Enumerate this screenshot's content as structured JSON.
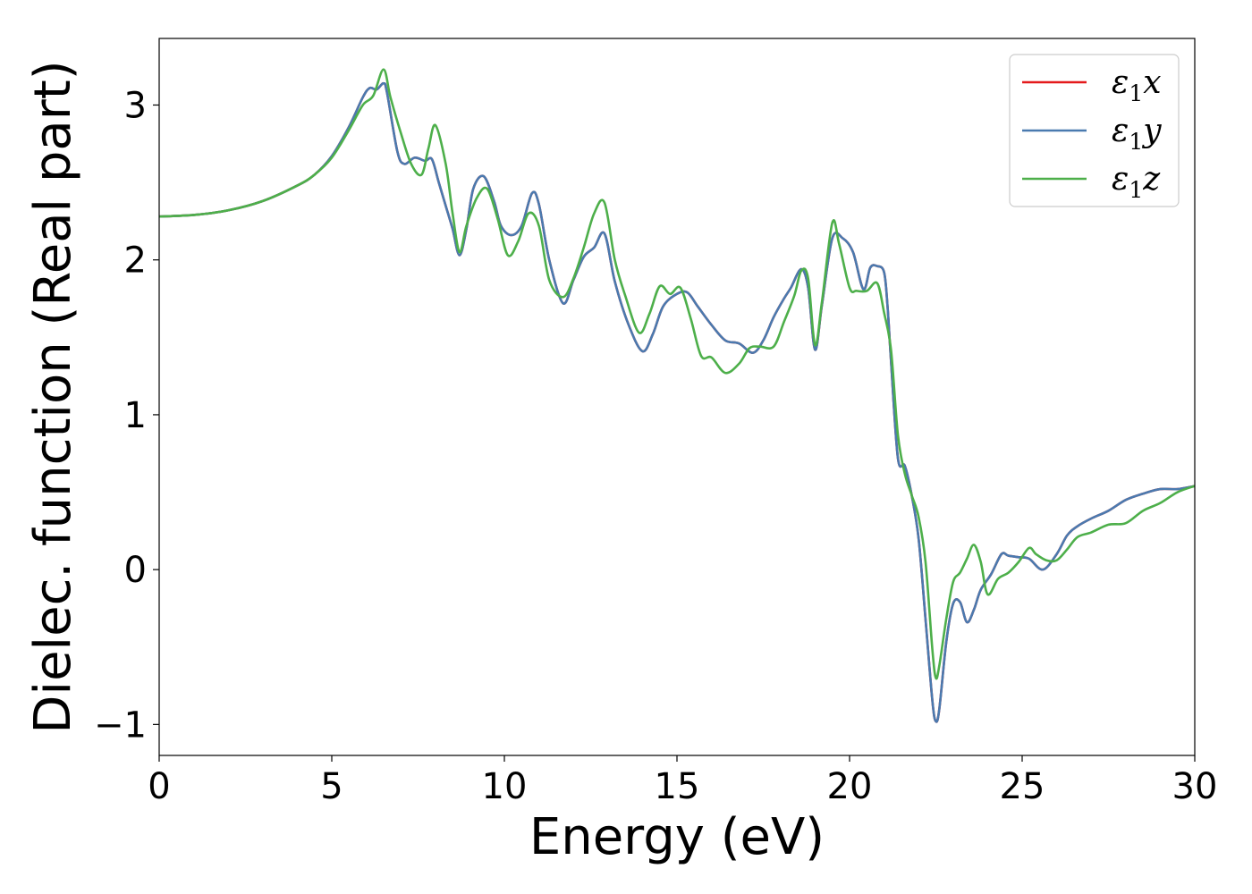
{
  "chart_data": {
    "type": "line",
    "title": "",
    "xlabel": "Energy (eV)",
    "ylabel": "Dielec. function (Real part)",
    "xlim": [
      0,
      30
    ],
    "ylim": [
      -1.2,
      3.43
    ],
    "xticks": [
      0,
      5,
      10,
      15,
      20,
      25,
      30
    ],
    "xtick_labels": [
      "0",
      "5",
      "10",
      "15",
      "20",
      "25",
      "30"
    ],
    "yticks": [
      -1,
      0,
      1,
      2,
      3
    ],
    "ytick_labels": [
      "−1",
      "0",
      "1",
      "2",
      "3"
    ],
    "grid": false,
    "legend_position": "top-right",
    "series": [
      {
        "name": "ε₁x",
        "legend_base": "ε",
        "legend_sub": "1",
        "legend_var": "x",
        "color": "#e41a1c",
        "x": [
          0,
          1,
          2,
          3,
          4,
          4.5,
          5,
          5.5,
          5.9,
          6.1,
          6.3,
          6.5,
          6.6,
          6.9,
          7.1,
          7.4,
          7.7,
          7.9,
          8.1,
          8.3,
          8.5,
          8.7,
          8.9,
          9.1,
          9.4,
          9.7,
          9.9,
          10.2,
          10.5,
          10.8,
          11.0,
          11.3,
          11.7,
          12.0,
          12.3,
          12.6,
          12.9,
          13.2,
          13.6,
          14.0,
          14.3,
          14.6,
          15.0,
          15.3,
          15.6,
          16.0,
          16.4,
          16.8,
          17.2,
          17.5,
          17.8,
          18.1,
          18.3,
          18.6,
          18.8,
          19.0,
          19.2,
          19.5,
          19.8,
          20.1,
          20.4,
          20.6,
          20.8,
          21.0,
          21.1,
          21.2,
          21.4,
          21.6,
          21.8,
          22.0,
          22.2,
          22.4,
          22.5,
          22.6,
          22.8,
          23.0,
          23.2,
          23.4,
          23.6,
          23.8,
          24.1,
          24.4,
          24.6,
          24.9,
          25.2,
          25.6,
          26.0,
          26.3,
          26.6,
          27.0,
          27.5,
          28.0,
          28.5,
          29.0,
          29.5,
          30.0
        ],
        "y": [
          2.28,
          2.29,
          2.32,
          2.38,
          2.48,
          2.55,
          2.67,
          2.86,
          3.05,
          3.11,
          3.1,
          3.14,
          3.08,
          2.7,
          2.62,
          2.66,
          2.64,
          2.65,
          2.5,
          2.35,
          2.2,
          2.03,
          2.2,
          2.46,
          2.54,
          2.38,
          2.22,
          2.16,
          2.22,
          2.43,
          2.36,
          2.0,
          1.72,
          1.87,
          2.02,
          2.08,
          2.17,
          1.86,
          1.58,
          1.41,
          1.52,
          1.7,
          1.78,
          1.79,
          1.7,
          1.58,
          1.48,
          1.46,
          1.4,
          1.48,
          1.63,
          1.75,
          1.82,
          1.94,
          1.82,
          1.42,
          1.71,
          2.14,
          2.14,
          2.05,
          1.81,
          1.95,
          1.96,
          1.92,
          1.7,
          1.35,
          0.72,
          0.67,
          0.48,
          0.2,
          -0.32,
          -0.85,
          -0.98,
          -0.9,
          -0.47,
          -0.22,
          -0.21,
          -0.34,
          -0.26,
          -0.13,
          -0.03,
          0.1,
          0.09,
          0.08,
          0.07,
          0.0,
          0.1,
          0.22,
          0.28,
          0.33,
          0.38,
          0.45,
          0.49,
          0.52,
          0.52,
          0.54
        ]
      },
      {
        "name": "ε₁y",
        "legend_base": "ε",
        "legend_sub": "1",
        "legend_var": "y",
        "color": "#4a7aaf",
        "x": [
          0,
          1,
          2,
          3,
          4,
          4.5,
          5,
          5.5,
          5.9,
          6.1,
          6.3,
          6.5,
          6.6,
          6.9,
          7.1,
          7.4,
          7.7,
          7.9,
          8.1,
          8.3,
          8.5,
          8.7,
          8.9,
          9.1,
          9.4,
          9.7,
          9.9,
          10.2,
          10.5,
          10.8,
          11.0,
          11.3,
          11.7,
          12.0,
          12.3,
          12.6,
          12.9,
          13.2,
          13.6,
          14.0,
          14.3,
          14.6,
          15.0,
          15.3,
          15.6,
          16.0,
          16.4,
          16.8,
          17.2,
          17.5,
          17.8,
          18.1,
          18.3,
          18.6,
          18.8,
          19.0,
          19.2,
          19.5,
          19.8,
          20.1,
          20.4,
          20.6,
          20.8,
          21.0,
          21.1,
          21.2,
          21.4,
          21.6,
          21.8,
          22.0,
          22.2,
          22.4,
          22.5,
          22.6,
          22.8,
          23.0,
          23.2,
          23.4,
          23.6,
          23.8,
          24.1,
          24.4,
          24.6,
          24.9,
          25.2,
          25.6,
          26.0,
          26.3,
          26.6,
          27.0,
          27.5,
          28.0,
          28.5,
          29.0,
          29.5,
          30.0
        ],
        "y": [
          2.28,
          2.29,
          2.32,
          2.38,
          2.48,
          2.55,
          2.67,
          2.86,
          3.05,
          3.11,
          3.1,
          3.14,
          3.08,
          2.7,
          2.62,
          2.66,
          2.64,
          2.65,
          2.5,
          2.35,
          2.2,
          2.03,
          2.2,
          2.46,
          2.54,
          2.38,
          2.22,
          2.16,
          2.22,
          2.43,
          2.36,
          2.0,
          1.72,
          1.87,
          2.02,
          2.08,
          2.17,
          1.86,
          1.58,
          1.41,
          1.52,
          1.7,
          1.78,
          1.79,
          1.7,
          1.58,
          1.48,
          1.46,
          1.4,
          1.48,
          1.63,
          1.75,
          1.82,
          1.94,
          1.82,
          1.42,
          1.71,
          2.14,
          2.14,
          2.05,
          1.81,
          1.95,
          1.96,
          1.92,
          1.7,
          1.35,
          0.72,
          0.67,
          0.48,
          0.2,
          -0.32,
          -0.85,
          -0.98,
          -0.9,
          -0.47,
          -0.22,
          -0.21,
          -0.34,
          -0.26,
          -0.13,
          -0.03,
          0.1,
          0.09,
          0.08,
          0.07,
          0.0,
          0.1,
          0.22,
          0.28,
          0.33,
          0.38,
          0.45,
          0.49,
          0.52,
          0.52,
          0.54
        ]
      },
      {
        "name": "ε₁z",
        "legend_base": "ε",
        "legend_sub": "1",
        "legend_var": "z",
        "color": "#4daf4a",
        "x": [
          0,
          1,
          2,
          3,
          4,
          4.5,
          5,
          5.5,
          5.9,
          6.2,
          6.5,
          6.7,
          7.0,
          7.3,
          7.6,
          7.8,
          8.0,
          8.3,
          8.5,
          8.7,
          8.9,
          9.2,
          9.5,
          9.8,
          10.1,
          10.4,
          10.7,
          11.0,
          11.3,
          11.7,
          12.0,
          12.3,
          12.6,
          12.9,
          13.2,
          13.5,
          13.9,
          14.2,
          14.5,
          14.8,
          15.1,
          15.4,
          15.7,
          16.0,
          16.4,
          16.8,
          17.1,
          17.4,
          17.8,
          18.1,
          18.4,
          18.6,
          18.8,
          19.0,
          19.2,
          19.5,
          19.7,
          20.0,
          20.2,
          20.5,
          20.8,
          21.0,
          21.2,
          21.4,
          21.6,
          21.8,
          22.0,
          22.2,
          22.4,
          22.5,
          22.6,
          22.8,
          23.0,
          23.2,
          23.4,
          23.6,
          23.8,
          24.0,
          24.3,
          24.6,
          24.9,
          25.2,
          25.4,
          25.7,
          26.0,
          26.3,
          26.6,
          27.0,
          27.5,
          28.0,
          28.5,
          29.0,
          29.5,
          30.0
        ],
        "y": [
          2.28,
          2.29,
          2.32,
          2.38,
          2.48,
          2.55,
          2.66,
          2.84,
          3.0,
          3.06,
          3.23,
          3.05,
          2.82,
          2.62,
          2.55,
          2.72,
          2.87,
          2.62,
          2.3,
          2.05,
          2.22,
          2.4,
          2.46,
          2.27,
          2.03,
          2.12,
          2.3,
          2.22,
          1.87,
          1.76,
          1.88,
          2.08,
          2.3,
          2.37,
          2.0,
          1.77,
          1.53,
          1.65,
          1.83,
          1.78,
          1.82,
          1.62,
          1.38,
          1.37,
          1.27,
          1.33,
          1.43,
          1.44,
          1.44,
          1.6,
          1.77,
          1.93,
          1.88,
          1.45,
          1.73,
          2.24,
          2.1,
          1.82,
          1.8,
          1.8,
          1.85,
          1.66,
          1.42,
          0.87,
          0.62,
          0.48,
          0.34,
          0.05,
          -0.52,
          -0.7,
          -0.62,
          -0.32,
          -0.08,
          -0.02,
          0.07,
          0.16,
          0.05,
          -0.16,
          -0.06,
          -0.02,
          0.05,
          0.14,
          0.1,
          0.06,
          0.06,
          0.13,
          0.21,
          0.24,
          0.29,
          0.3,
          0.38,
          0.43,
          0.5,
          0.54
        ]
      }
    ]
  }
}
